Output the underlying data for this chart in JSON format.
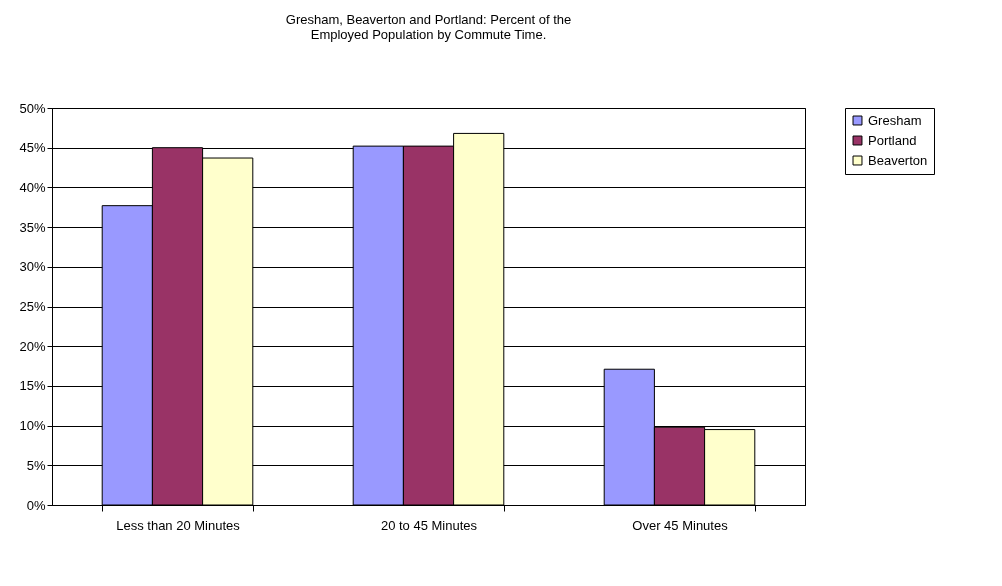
{
  "chart_data": {
    "type": "bar",
    "title": "Gresham, Beaverton and Portland: Percent of the\nEmployed Population by Commute Time.",
    "categories": [
      "Less than 20 Minutes",
      "20 to 45 Minutes",
      "Over 45 Minutes"
    ],
    "series": [
      {
        "name": "Gresham",
        "color": "#9999ff",
        "values": [
          37.7,
          45.2,
          17.1
        ]
      },
      {
        "name": "Portland",
        "color": "#993366",
        "values": [
          45.0,
          45.2,
          9.8
        ]
      },
      {
        "name": "Beaverton",
        "color": "#ffffcc",
        "values": [
          43.7,
          46.8,
          9.5
        ]
      }
    ],
    "ylim": [
      0,
      50
    ],
    "yticks": [
      {
        "value": 0,
        "label": "0%"
      },
      {
        "value": 5,
        "label": "5%"
      },
      {
        "value": 10,
        "label": "10%"
      },
      {
        "value": 15,
        "label": "15%"
      },
      {
        "value": 20,
        "label": "20%"
      },
      {
        "value": 25,
        "label": "25%"
      },
      {
        "value": 30,
        "label": "30%"
      },
      {
        "value": 35,
        "label": "35%"
      },
      {
        "value": 40,
        "label": "40%"
      },
      {
        "value": 45,
        "label": "45%"
      },
      {
        "value": 50,
        "label": "50%"
      }
    ],
    "grid": "y",
    "legend": "right"
  }
}
